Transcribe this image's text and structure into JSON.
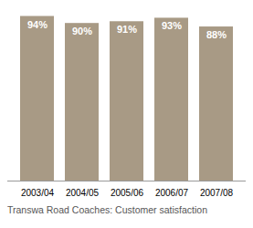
{
  "chart_data": {
    "type": "bar",
    "title": "Transwa Road Coaches: Customer satisfaction",
    "categories": [
      "2003/04",
      "2004/05",
      "2005/06",
      "2006/07",
      "2007/08"
    ],
    "values": [
      94,
      90,
      91,
      93,
      88
    ],
    "value_labels": [
      "94%",
      "90%",
      "91%",
      "93%",
      "88%"
    ],
    "data_labels": true,
    "color": "#a89a85",
    "ylim": [
      0,
      100
    ],
    "tick_labels": "x",
    "grid": false
  }
}
